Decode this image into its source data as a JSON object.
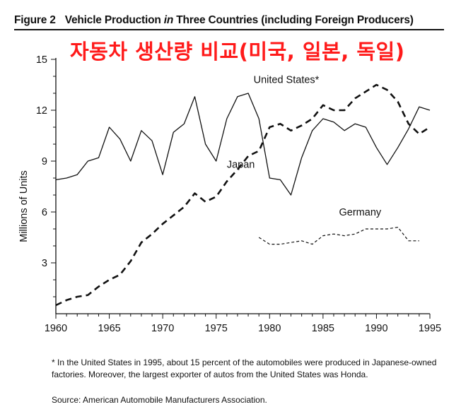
{
  "figure": {
    "label": "Figure 2",
    "title_part1": "Vehicle Production ",
    "title_italic": "in",
    "title_part2": " Three Countries (including Foreign Producers)"
  },
  "korean_title": "자동차 생산량 비교(미국, 일본, 독일)",
  "footnote": "* In the United States in 1995, about 15 percent of the automobiles were produced in Japanese-owned factories. Moreover, the largest exporter of autos from the United States was Honda.",
  "source": "Source: American Automobile Manufacturers Association.",
  "colors": {
    "title_red": "#ff1a1a",
    "ink": "#111111"
  },
  "chart_data": {
    "type": "line",
    "ylabel": "Millions of Units",
    "xlabel": "",
    "xlim": [
      1960,
      1995
    ],
    "ylim": [
      0,
      15
    ],
    "x_ticks": [
      1960,
      1965,
      1970,
      1975,
      1980,
      1985,
      1990,
      1995
    ],
    "x_tick_labels": [
      "1960",
      "1965",
      "1970",
      "1975",
      "1980",
      "1985",
      "1990",
      "1995"
    ],
    "y_ticks": [
      3,
      6,
      9,
      12,
      15
    ],
    "y_tick_labels": [
      "3",
      "6",
      "9",
      "12",
      "15"
    ],
    "series": [
      {
        "name": "United States*",
        "label_text": "United States*",
        "style": "solid",
        "label_anchor": [
          1978.5,
          13.6
        ],
        "x": [
          1960,
          1961,
          1962,
          1963,
          1964,
          1965,
          1966,
          1967,
          1968,
          1969,
          1970,
          1971,
          1972,
          1973,
          1974,
          1975,
          1976,
          1977,
          1978,
          1979,
          1980,
          1981,
          1982,
          1983,
          1984,
          1985,
          1986,
          1987,
          1988,
          1989,
          1990,
          1991,
          1992,
          1993,
          1994,
          1995
        ],
        "values": [
          7.9,
          8.0,
          8.2,
          9.0,
          9.2,
          11.0,
          10.3,
          9.0,
          10.8,
          10.2,
          8.2,
          10.7,
          11.2,
          12.8,
          10.0,
          9.0,
          11.5,
          12.8,
          13.0,
          11.5,
          8.0,
          7.9,
          7.0,
          9.2,
          10.8,
          11.5,
          11.3,
          10.8,
          11.2,
          11.0,
          9.8,
          8.8,
          9.8,
          10.9,
          12.2,
          12.0
        ]
      },
      {
        "name": "Japan",
        "label_text": "Japan",
        "style": "dashed",
        "label_anchor": [
          1976.0,
          8.6
        ],
        "x": [
          1960,
          1961,
          1962,
          1963,
          1964,
          1965,
          1966,
          1967,
          1968,
          1969,
          1970,
          1971,
          1972,
          1973,
          1974,
          1975,
          1976,
          1977,
          1978,
          1979,
          1980,
          1981,
          1982,
          1983,
          1984,
          1985,
          1986,
          1987,
          1988,
          1989,
          1990,
          1991,
          1992,
          1993,
          1994,
          1995
        ],
        "values": [
          0.5,
          0.8,
          1.0,
          1.1,
          1.6,
          2.0,
          2.3,
          3.1,
          4.2,
          4.7,
          5.3,
          5.8,
          6.3,
          7.1,
          6.6,
          6.9,
          7.8,
          8.5,
          9.3,
          9.6,
          11.0,
          11.2,
          10.8,
          11.1,
          11.5,
          12.3,
          12.0,
          12.0,
          12.7,
          13.1,
          13.5,
          13.2,
          12.5,
          11.2,
          10.6,
          11.0
        ]
      },
      {
        "name": "Germany",
        "label_text": "Germany",
        "style": "dotted",
        "label_anchor": [
          1986.5,
          5.8
        ],
        "x": [
          1979,
          1980,
          1981,
          1982,
          1983,
          1984,
          1985,
          1986,
          1987,
          1988,
          1989,
          1990,
          1991,
          1992,
          1993,
          1994
        ],
        "values": [
          4.5,
          4.1,
          4.1,
          4.2,
          4.3,
          4.1,
          4.6,
          4.7,
          4.6,
          4.7,
          5.0,
          5.0,
          5.0,
          5.1,
          4.3,
          4.3
        ]
      }
    ]
  }
}
